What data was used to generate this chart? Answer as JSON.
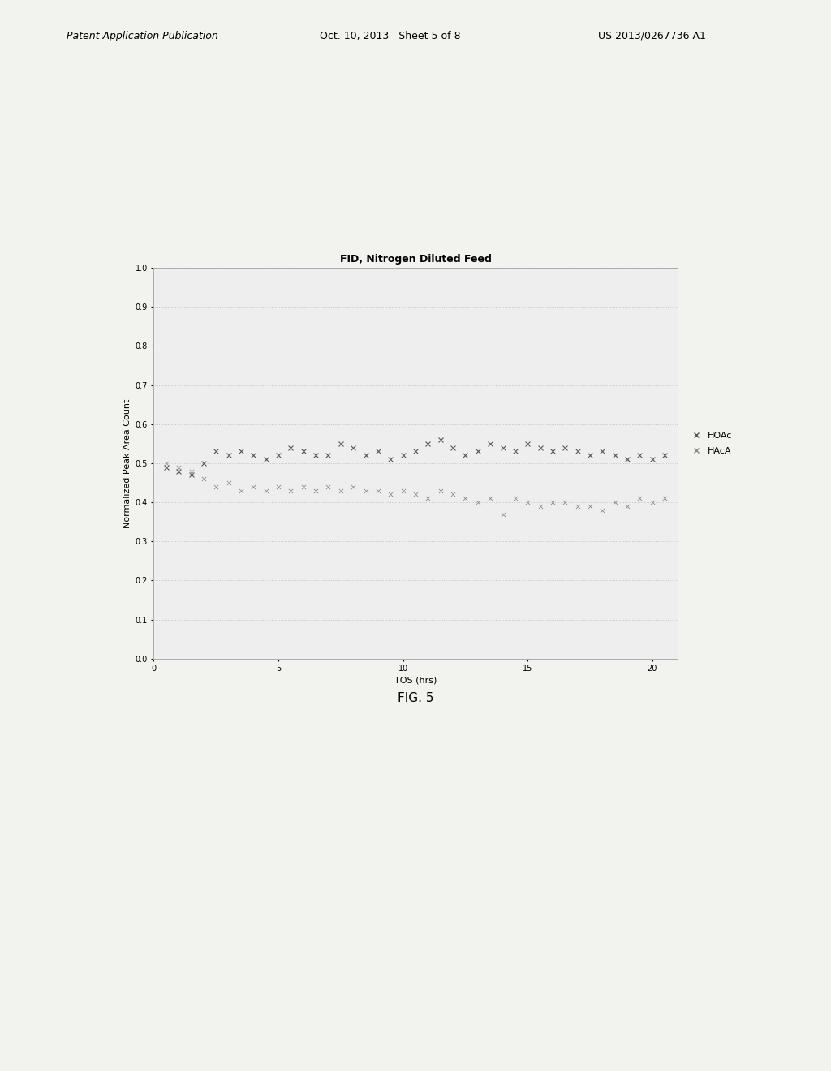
{
  "title": "FID, Nitrogen Diluted Feed",
  "xlabel": "TOS (hrs)",
  "ylabel": "Normalized Peak Area Count",
  "xlim": [
    0,
    21
  ],
  "ylim": [
    0,
    1.0
  ],
  "xticks": [
    0,
    5,
    10,
    15,
    20
  ],
  "yticks": [
    0,
    0.1,
    0.2,
    0.3,
    0.4,
    0.5,
    0.6,
    0.7,
    0.8,
    0.9,
    1
  ],
  "HOAc_x": [
    0.5,
    1.0,
    1.5,
    2.0,
    2.5,
    3.0,
    3.5,
    4.0,
    4.5,
    5.0,
    5.5,
    6.0,
    6.5,
    7.0,
    7.5,
    8.0,
    8.5,
    9.0,
    9.5,
    10.0,
    10.5,
    11.0,
    11.5,
    12.0,
    12.5,
    13.0,
    13.5,
    14.0,
    14.5,
    15.0,
    15.5,
    16.0,
    16.5,
    17.0,
    17.5,
    18.0,
    18.5,
    19.0,
    19.5,
    20.0,
    20.5
  ],
  "HOAc_y": [
    0.49,
    0.48,
    0.47,
    0.5,
    0.53,
    0.52,
    0.53,
    0.52,
    0.51,
    0.52,
    0.54,
    0.53,
    0.52,
    0.52,
    0.55,
    0.54,
    0.52,
    0.53,
    0.51,
    0.52,
    0.53,
    0.55,
    0.56,
    0.54,
    0.52,
    0.53,
    0.55,
    0.54,
    0.53,
    0.55,
    0.54,
    0.53,
    0.54,
    0.53,
    0.52,
    0.53,
    0.52,
    0.51,
    0.52,
    0.51,
    0.52
  ],
  "HAcA_x": [
    0.5,
    1.0,
    1.5,
    2.0,
    2.5,
    3.0,
    3.5,
    4.0,
    4.5,
    5.0,
    5.5,
    6.0,
    6.5,
    7.0,
    7.5,
    8.0,
    8.5,
    9.0,
    9.5,
    10.0,
    10.5,
    11.0,
    11.5,
    12.0,
    12.5,
    13.0,
    13.5,
    14.0,
    14.5,
    15.0,
    15.5,
    16.0,
    16.5,
    17.0,
    17.5,
    18.0,
    18.5,
    19.0,
    19.5,
    20.0,
    20.5
  ],
  "HAcA_y": [
    0.5,
    0.49,
    0.48,
    0.46,
    0.44,
    0.45,
    0.43,
    0.44,
    0.43,
    0.44,
    0.43,
    0.44,
    0.43,
    0.44,
    0.43,
    0.44,
    0.43,
    0.43,
    0.42,
    0.43,
    0.42,
    0.41,
    0.43,
    0.42,
    0.41,
    0.4,
    0.41,
    0.37,
    0.41,
    0.4,
    0.39,
    0.4,
    0.4,
    0.39,
    0.39,
    0.38,
    0.4,
    0.39,
    0.41,
    0.4,
    0.41
  ],
  "HOAc_color": "#555555",
  "HAcA_color": "#888888",
  "bg_color": "#eeeeee",
  "grid_color": "#bbbbbb",
  "title_fontsize": 9,
  "label_fontsize": 8,
  "tick_fontsize": 7,
  "legend_fontsize": 8,
  "fig_caption": "FIG. 5",
  "header_left": "Patent Application Publication",
  "header_center": "Oct. 10, 2013   Sheet 5 of 8",
  "header_right": "US 2013/0267736 A1",
  "fig_bg_color": "#f2f2ee"
}
